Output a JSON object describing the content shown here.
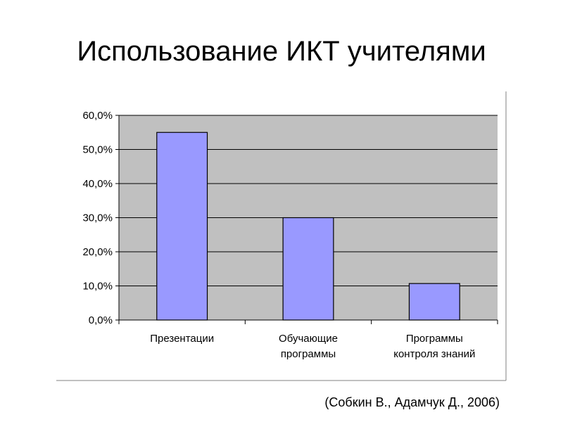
{
  "slide": {
    "title": "Использование ИКТ учителями",
    "source": "(Собкин В., Адамчук Д., 2006)"
  },
  "colors": {
    "plot_area": "#c0c0c0",
    "bar_fill": "#9999ff",
    "bar_stroke": "#000000",
    "gridline": "#000000",
    "frame_border": "#808080"
  },
  "chart_data": {
    "type": "bar",
    "categories": [
      [
        "Презентации"
      ],
      [
        "Обучающие",
        "программы"
      ],
      [
        "Программы",
        "контроля знаний"
      ]
    ],
    "values": [
      55.0,
      30.0,
      10.7
    ],
    "ylim": [
      0,
      60
    ],
    "ytick_values": [
      0,
      10,
      20,
      30,
      40,
      50,
      60
    ],
    "ytick_labels": [
      "0,0%",
      "10,0%",
      "20,0%",
      "30,0%",
      "40,0%",
      "50,0%",
      "60,0%"
    ],
    "grid": true,
    "legend": "none"
  }
}
